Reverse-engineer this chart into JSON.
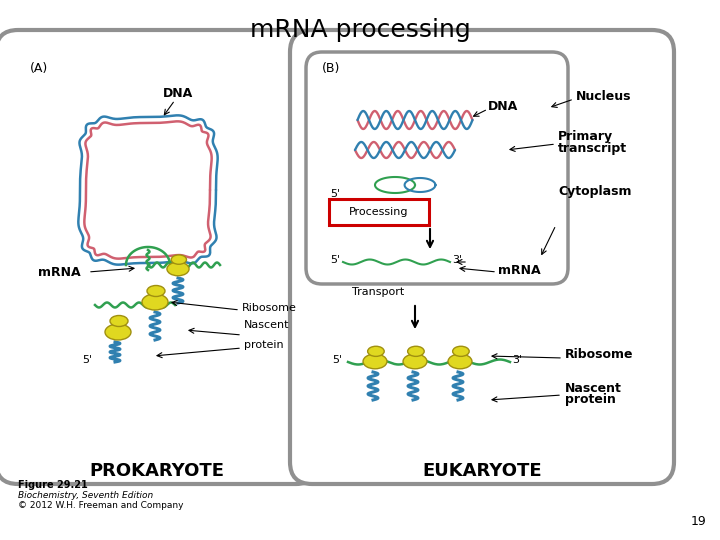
{
  "title": "mRNA processing",
  "title_fontsize": 18,
  "page_number": "19",
  "background_color": "#ffffff",
  "figure_caption": "Figure 29.21",
  "figure_subcaption1": "Biochemistry, Seventh Edition",
  "figure_subcaption2": "© 2012 W.H. Freeman and Company",
  "label_A": "(A)",
  "label_B": "(B)",
  "prokaryote_label": "PROKARYOTE",
  "eukaryote_label": "EUKARYOTE",
  "dna_color_pink": "#d06070",
  "dna_color_blue": "#3080b0",
  "dna_color_green": "#30a050",
  "ribosome_color": "#e0d820",
  "ribosome_outline": "#a09010",
  "cell_outline_color": "#909090",
  "arrow_color": "#000000",
  "processing_box_color": "#cc0000",
  "text_color": "#000000",
  "annot_fontsize": 8,
  "small_fontsize": 7,
  "bold_label_fontsize": 11
}
